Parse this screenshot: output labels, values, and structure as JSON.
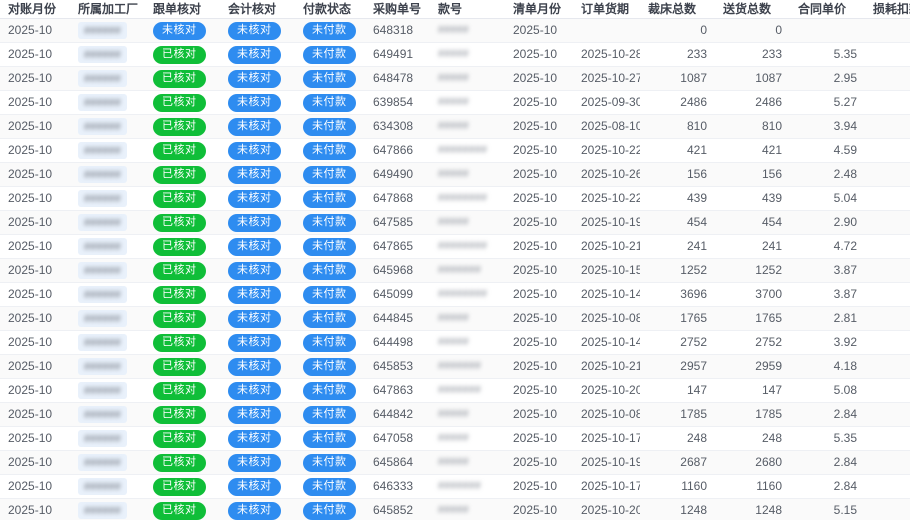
{
  "table": {
    "columns": [
      {
        "key": "month",
        "label": "对账月份"
      },
      {
        "key": "factory",
        "label": "所属加工厂"
      },
      {
        "key": "followup",
        "label": "跟单核对"
      },
      {
        "key": "accounting",
        "label": "会计核对"
      },
      {
        "key": "payment",
        "label": "付款状态"
      },
      {
        "key": "po",
        "label": "采购单号"
      },
      {
        "key": "style",
        "label": "款号"
      },
      {
        "key": "list_month",
        "label": "清单月份"
      },
      {
        "key": "delivery_date",
        "label": "订单货期"
      },
      {
        "key": "cut_total",
        "label": "裁床总数"
      },
      {
        "key": "ship_total",
        "label": "送货总数"
      },
      {
        "key": "unit_price",
        "label": "合同单价"
      },
      {
        "key": "deduction",
        "label": "损耗扣款"
      }
    ],
    "badge_labels": {
      "checked": "已核对",
      "unchecked": "未核对",
      "unpaid": "未付款"
    },
    "colors": {
      "badge_green": "#0fbe38",
      "badge_blue": "#2e8cf0",
      "factory_pill_bg": "#e9f1fb",
      "stripe": "#fafafa",
      "row_border": "#eef0f4"
    },
    "redaction_note": "factory and style values are blurred/illegible in source",
    "rows": [
      {
        "month": "2025-10",
        "factory_mask": "######",
        "followup": "unchecked",
        "accounting": "unchecked",
        "payment": "unpaid",
        "po": "648318",
        "style_mask": "#####",
        "list_month": "2025-10",
        "delivery_date": "",
        "cut": "0",
        "ship": "0",
        "price": "",
        "deduction": ""
      },
      {
        "month": "2025-10",
        "factory_mask": "######",
        "followup": "checked",
        "accounting": "unchecked",
        "payment": "unpaid",
        "po": "649491",
        "style_mask": "#####",
        "list_month": "2025-10",
        "delivery_date": "2025-10-28",
        "cut": "233",
        "ship": "233",
        "price": "5.35",
        "deduction": ""
      },
      {
        "month": "2025-10",
        "factory_mask": "######",
        "followup": "checked",
        "accounting": "unchecked",
        "payment": "unpaid",
        "po": "648478",
        "style_mask": "#####",
        "list_month": "2025-10",
        "delivery_date": "2025-10-27",
        "cut": "1087",
        "ship": "1087",
        "price": "2.95",
        "deduction": ""
      },
      {
        "month": "2025-10",
        "factory_mask": "######",
        "followup": "checked",
        "accounting": "unchecked",
        "payment": "unpaid",
        "po": "639854",
        "style_mask": "#####",
        "list_month": "2025-10",
        "delivery_date": "2025-09-30",
        "cut": "2486",
        "ship": "2486",
        "price": "5.27",
        "deduction": ""
      },
      {
        "month": "2025-10",
        "factory_mask": "######",
        "followup": "checked",
        "accounting": "unchecked",
        "payment": "unpaid",
        "po": "634308",
        "style_mask": "#####",
        "list_month": "2025-10",
        "delivery_date": "2025-08-10",
        "cut": "810",
        "ship": "810",
        "price": "3.94",
        "deduction": ""
      },
      {
        "month": "2025-10",
        "factory_mask": "######",
        "followup": "checked",
        "accounting": "unchecked",
        "payment": "unpaid",
        "po": "647866",
        "style_mask": "########",
        "list_month": "2025-10",
        "delivery_date": "2025-10-22",
        "cut": "421",
        "ship": "421",
        "price": "4.59",
        "deduction": ""
      },
      {
        "month": "2025-10",
        "factory_mask": "######",
        "followup": "checked",
        "accounting": "unchecked",
        "payment": "unpaid",
        "po": "649490",
        "style_mask": "#####",
        "list_month": "2025-10",
        "delivery_date": "2025-10-26",
        "cut": "156",
        "ship": "156",
        "price": "2.48",
        "deduction": ""
      },
      {
        "month": "2025-10",
        "factory_mask": "######",
        "followup": "checked",
        "accounting": "unchecked",
        "payment": "unpaid",
        "po": "647868",
        "style_mask": "########",
        "list_month": "2025-10",
        "delivery_date": "2025-10-22",
        "cut": "439",
        "ship": "439",
        "price": "5.04",
        "deduction": ""
      },
      {
        "month": "2025-10",
        "factory_mask": "######",
        "followup": "checked",
        "accounting": "unchecked",
        "payment": "unpaid",
        "po": "647585",
        "style_mask": "#####",
        "list_month": "2025-10",
        "delivery_date": "2025-10-19",
        "cut": "454",
        "ship": "454",
        "price": "2.90",
        "deduction": ""
      },
      {
        "month": "2025-10",
        "factory_mask": "######",
        "followup": "checked",
        "accounting": "unchecked",
        "payment": "unpaid",
        "po": "647865",
        "style_mask": "########",
        "list_month": "2025-10",
        "delivery_date": "2025-10-21",
        "cut": "241",
        "ship": "241",
        "price": "4.72",
        "deduction": ""
      },
      {
        "month": "2025-10",
        "factory_mask": "######",
        "followup": "checked",
        "accounting": "unchecked",
        "payment": "unpaid",
        "po": "645968",
        "style_mask": "#######",
        "list_month": "2025-10",
        "delivery_date": "2025-10-15",
        "cut": "1252",
        "ship": "1252",
        "price": "3.87",
        "deduction": ""
      },
      {
        "month": "2025-10",
        "factory_mask": "######",
        "followup": "checked",
        "accounting": "unchecked",
        "payment": "unpaid",
        "po": "645099",
        "style_mask": "########",
        "list_month": "2025-10",
        "delivery_date": "2025-10-14",
        "cut": "3696",
        "ship": "3700",
        "price": "3.87",
        "deduction": ""
      },
      {
        "month": "2025-10",
        "factory_mask": "######",
        "followup": "checked",
        "accounting": "unchecked",
        "payment": "unpaid",
        "po": "644845",
        "style_mask": "#####",
        "list_month": "2025-10",
        "delivery_date": "2025-10-08",
        "cut": "1765",
        "ship": "1765",
        "price": "2.81",
        "deduction": ""
      },
      {
        "month": "2025-10",
        "factory_mask": "######",
        "followup": "checked",
        "accounting": "unchecked",
        "payment": "unpaid",
        "po": "644498",
        "style_mask": "#####",
        "list_month": "2025-10",
        "delivery_date": "2025-10-14",
        "cut": "2752",
        "ship": "2752",
        "price": "3.92",
        "deduction": ""
      },
      {
        "month": "2025-10",
        "factory_mask": "######",
        "followup": "checked",
        "accounting": "unchecked",
        "payment": "unpaid",
        "po": "645853",
        "style_mask": "#######",
        "list_month": "2025-10",
        "delivery_date": "2025-10-21",
        "cut": "2957",
        "ship": "2959",
        "price": "4.18",
        "deduction": ""
      },
      {
        "month": "2025-10",
        "factory_mask": "######",
        "followup": "checked",
        "accounting": "unchecked",
        "payment": "unpaid",
        "po": "647863",
        "style_mask": "#######",
        "list_month": "2025-10",
        "delivery_date": "2025-10-20",
        "cut": "147",
        "ship": "147",
        "price": "5.08",
        "deduction": ""
      },
      {
        "month": "2025-10",
        "factory_mask": "######",
        "followup": "checked",
        "accounting": "unchecked",
        "payment": "unpaid",
        "po": "644842",
        "style_mask": "#####",
        "list_month": "2025-10",
        "delivery_date": "2025-10-08",
        "cut": "1785",
        "ship": "1785",
        "price": "2.84",
        "deduction": ""
      },
      {
        "month": "2025-10",
        "factory_mask": "######",
        "followup": "checked",
        "accounting": "unchecked",
        "payment": "unpaid",
        "po": "647058",
        "style_mask": "#####",
        "list_month": "2025-10",
        "delivery_date": "2025-10-17",
        "cut": "248",
        "ship": "248",
        "price": "5.35",
        "deduction": ""
      },
      {
        "month": "2025-10",
        "factory_mask": "######",
        "followup": "checked",
        "accounting": "unchecked",
        "payment": "unpaid",
        "po": "645864",
        "style_mask": "#####",
        "list_month": "2025-10",
        "delivery_date": "2025-10-19",
        "cut": "2687",
        "ship": "2680",
        "price": "2.84",
        "deduction": ""
      },
      {
        "month": "2025-10",
        "factory_mask": "######",
        "followup": "checked",
        "accounting": "unchecked",
        "payment": "unpaid",
        "po": "646333",
        "style_mask": "#######",
        "list_month": "2025-10",
        "delivery_date": "2025-10-17",
        "cut": "1160",
        "ship": "1160",
        "price": "2.84",
        "deduction": ""
      },
      {
        "month": "2025-10",
        "factory_mask": "######",
        "followup": "checked",
        "accounting": "unchecked",
        "payment": "unpaid",
        "po": "645852",
        "style_mask": "#####",
        "list_month": "2025-10",
        "delivery_date": "2025-10-20",
        "cut": "1248",
        "ship": "1248",
        "price": "5.15",
        "deduction": ""
      }
    ]
  }
}
